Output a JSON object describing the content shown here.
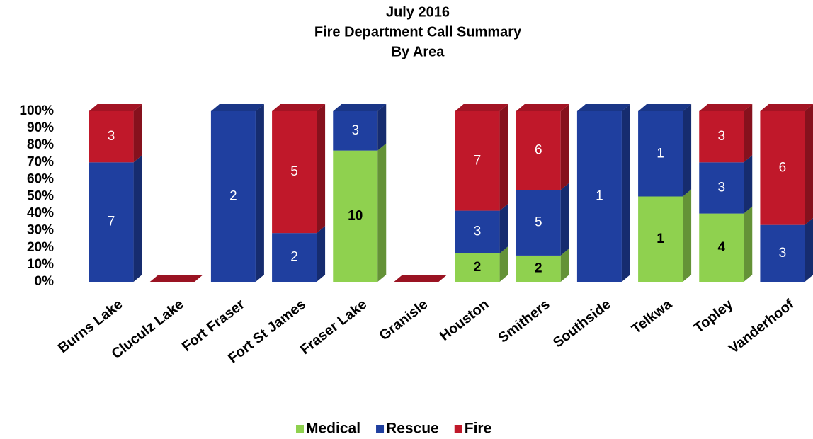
{
  "chart_data": {
    "type": "bar",
    "stacking": "percent",
    "title": [
      "July 2016",
      "Fire Department Call Summary",
      "By Area"
    ],
    "categories": [
      "Burns Lake",
      "Cluculz Lake",
      "Fort Fraser",
      "Fort St James",
      "Fraser Lake",
      "Granisle",
      "Houston",
      "Smithers",
      "Southside",
      "Telkwa",
      "Topley",
      "Vanderhoof"
    ],
    "series": [
      {
        "name": "Medical",
        "color": "#8fd14f",
        "values": [
          null,
          null,
          null,
          null,
          10,
          null,
          2,
          2,
          null,
          1,
          4,
          null
        ]
      },
      {
        "name": "Rescue",
        "color": "#1f3f9f",
        "values": [
          7,
          null,
          2,
          2,
          3,
          null,
          3,
          5,
          1,
          1,
          3,
          3
        ]
      },
      {
        "name": "Fire",
        "color": "#c0182a",
        "values": [
          3,
          null,
          null,
          5,
          null,
          null,
          7,
          6,
          null,
          null,
          3,
          6
        ]
      }
    ],
    "ylim": [
      0,
      100
    ],
    "yticks": [
      {
        "value": 0,
        "label": "0%"
      },
      {
        "value": 10,
        "label": "10%"
      },
      {
        "value": 20,
        "label": "20%"
      },
      {
        "value": 30,
        "label": "30%"
      },
      {
        "value": 40,
        "label": "40%"
      },
      {
        "value": 50,
        "label": "50%"
      },
      {
        "value": 60,
        "label": "60%"
      },
      {
        "value": 70,
        "label": "70%"
      },
      {
        "value": 80,
        "label": "80%"
      },
      {
        "value": 90,
        "label": "90%"
      },
      {
        "value": 100,
        "label": "100%"
      }
    ],
    "legend": "bottom"
  }
}
